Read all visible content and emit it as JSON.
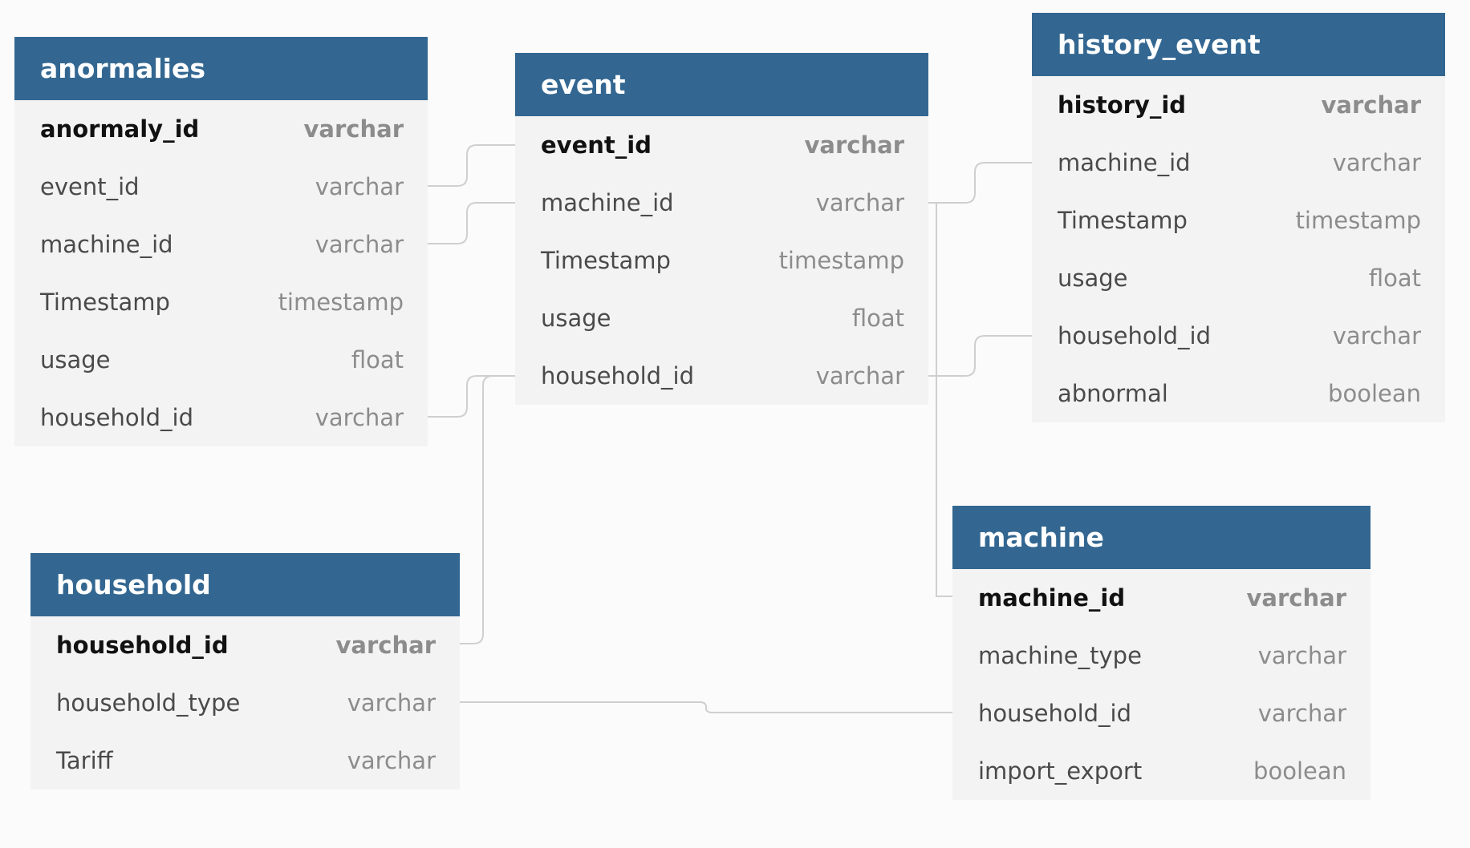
{
  "tables": {
    "anormalies": {
      "name": "anormalies",
      "fields": [
        {
          "name": "anormaly_id",
          "type": "varchar"
        },
        {
          "name": "event_id",
          "type": "varchar"
        },
        {
          "name": "machine_id",
          "type": "varchar"
        },
        {
          "name": "Timestamp",
          "type": "timestamp"
        },
        {
          "name": "usage",
          "type": "float"
        },
        {
          "name": "household_id",
          "type": "varchar"
        }
      ]
    },
    "event": {
      "name": "event",
      "fields": [
        {
          "name": "event_id",
          "type": "varchar"
        },
        {
          "name": "machine_id",
          "type": "varchar"
        },
        {
          "name": "Timestamp",
          "type": "timestamp"
        },
        {
          "name": "usage",
          "type": "float"
        },
        {
          "name": "household_id",
          "type": "varchar"
        }
      ]
    },
    "history_event": {
      "name": "history_event",
      "fields": [
        {
          "name": "history_id",
          "type": "varchar"
        },
        {
          "name": "machine_id",
          "type": "varchar"
        },
        {
          "name": "Timestamp",
          "type": "timestamp"
        },
        {
          "name": "usage",
          "type": "float"
        },
        {
          "name": "household_id",
          "type": "varchar"
        },
        {
          "name": "abnormal",
          "type": "boolean"
        }
      ]
    },
    "household": {
      "name": "household",
      "fields": [
        {
          "name": "household_id",
          "type": "varchar"
        },
        {
          "name": "household_type",
          "type": "varchar"
        },
        {
          "name": "Tariff",
          "type": "varchar"
        }
      ]
    },
    "machine": {
      "name": "machine",
      "fields": [
        {
          "name": "machine_id",
          "type": "varchar"
        },
        {
          "name": "machine_type",
          "type": "varchar"
        },
        {
          "name": "household_id",
          "type": "varchar"
        },
        {
          "name": "import_export",
          "type": "boolean"
        }
      ]
    }
  },
  "relationships": [
    {
      "from": "anormalies.event_id",
      "to": "event.event_id"
    },
    {
      "from": "anormalies.machine_id",
      "to": "event.machine_id"
    },
    {
      "from": "anormalies.household_id",
      "to": "event.household_id"
    },
    {
      "from": "event.household_id",
      "to": "household.household_id"
    },
    {
      "from": "event.machine_id",
      "to": "history_event.machine_id"
    },
    {
      "from": "event.machine_id",
      "to": "machine.machine_id"
    },
    {
      "from": "event.household_id",
      "to": "history_event.household_id"
    },
    {
      "from": "household.household_type",
      "to": "machine.household_id"
    }
  ]
}
